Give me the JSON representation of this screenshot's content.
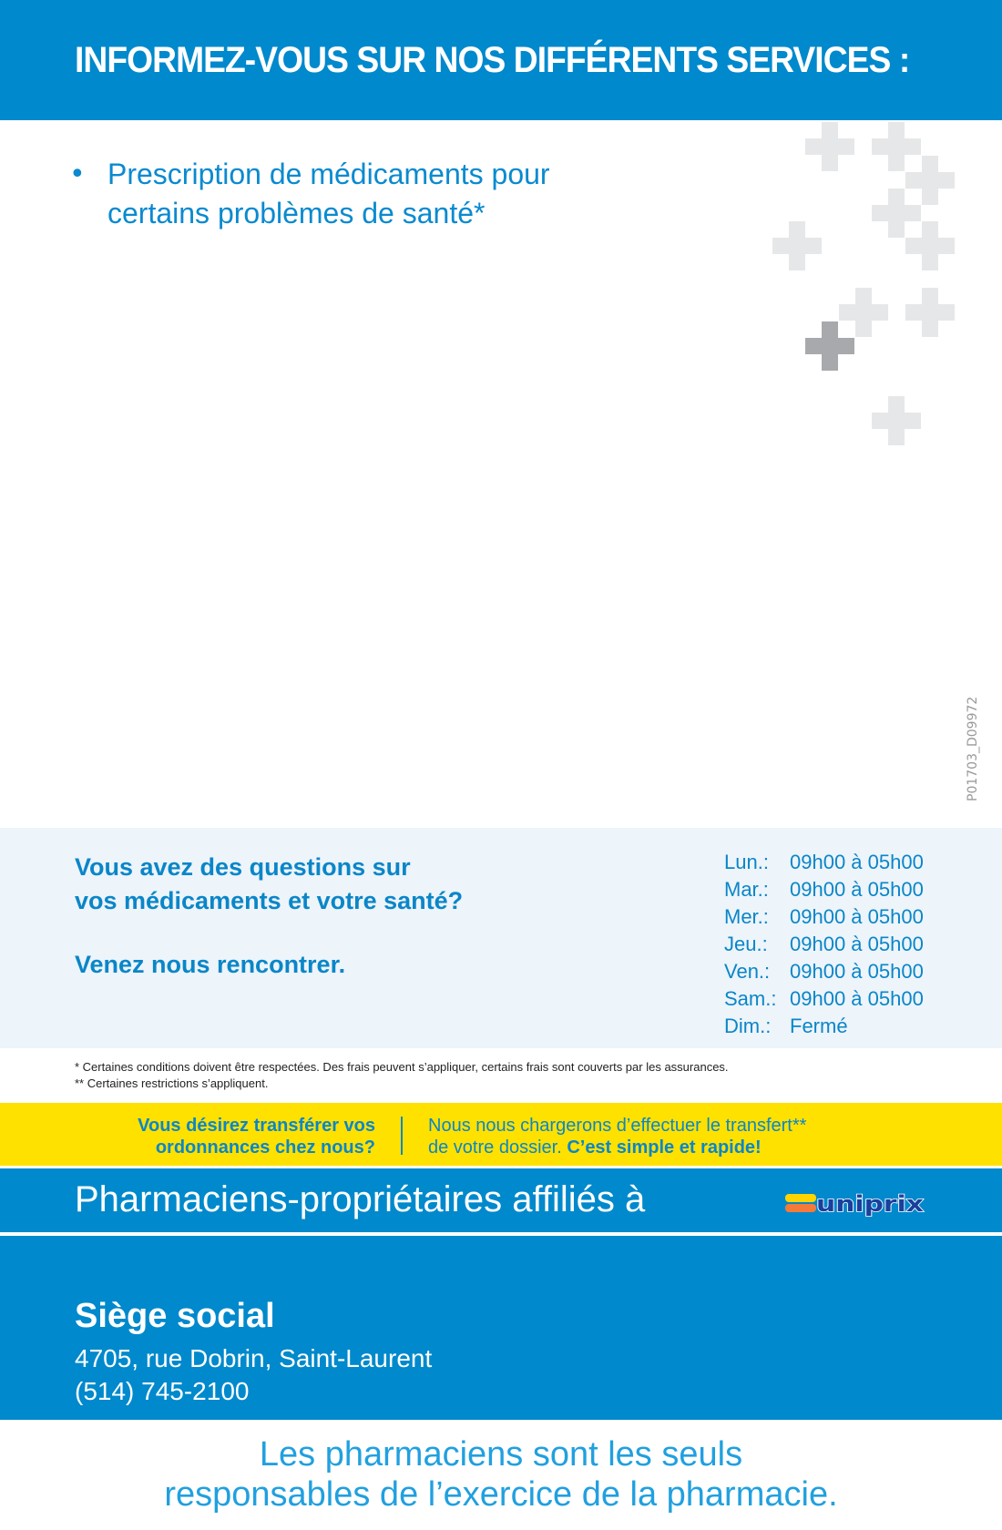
{
  "header": {
    "title": "INFORMEZ-VOUS SUR NOS DIFFÉRENTS SERVICES :"
  },
  "services": [
    {
      "bullet": "•",
      "line1": "Prescription de médicaments pour",
      "line2": "certains problèmes de santé*"
    }
  ],
  "doc_code": "P01703_D09972",
  "contact": {
    "question_line1": "Vous avez des questions sur",
    "question_line2": "vos médicaments et votre santé?",
    "visit": "Venez nous rencontrer.",
    "hours": [
      {
        "day": "Lun.:",
        "time": "09h00 à 05h00"
      },
      {
        "day": "Mar.:",
        "time": "09h00 à 05h00"
      },
      {
        "day": "Mer.:",
        "time": "09h00 à 05h00"
      },
      {
        "day": "Jeu.:",
        "time": "09h00 à 05h00"
      },
      {
        "day": "Ven.:",
        "time": "09h00 à 05h00"
      },
      {
        "day": "Sam.:",
        "time": "09h00 à 05h00"
      },
      {
        "day": "Dim.:",
        "time": "Fermé"
      }
    ]
  },
  "footnotes": [
    "* Certaines conditions doivent être respectées. Des frais peuvent s’appliquer, certains frais sont couverts par les assurances.",
    "** Certaines restrictions s’appliquent."
  ],
  "transfer": {
    "left_line1": "Vous désirez transférer vos",
    "left_line2": "ordonnances chez nous?",
    "right_line1": "Nous nous chargerons d’effectuer le transfert**",
    "right_line2": "de votre dossier. ",
    "right_emphasis": "C’est simple et rapide!"
  },
  "affiliation": {
    "text": "Pharmaciens-propriétaires affiliés à",
    "logo": "uniprix"
  },
  "headquarters": {
    "title": "Siège social",
    "address": "4705, rue Dobrin, Saint-Laurent",
    "phone": "(514) 745-2100"
  },
  "closing": {
    "line1": "Les pharmaciens sont les seuls",
    "line2": "responsables de l’exercice de la pharmacie."
  },
  "colors": {
    "brand_blue": "#0089cc",
    "yellow": "#ffe100",
    "light_band": "#edf4fa",
    "cross_light": "#e6e7e8",
    "cross_dark": "#a7a9ac"
  }
}
